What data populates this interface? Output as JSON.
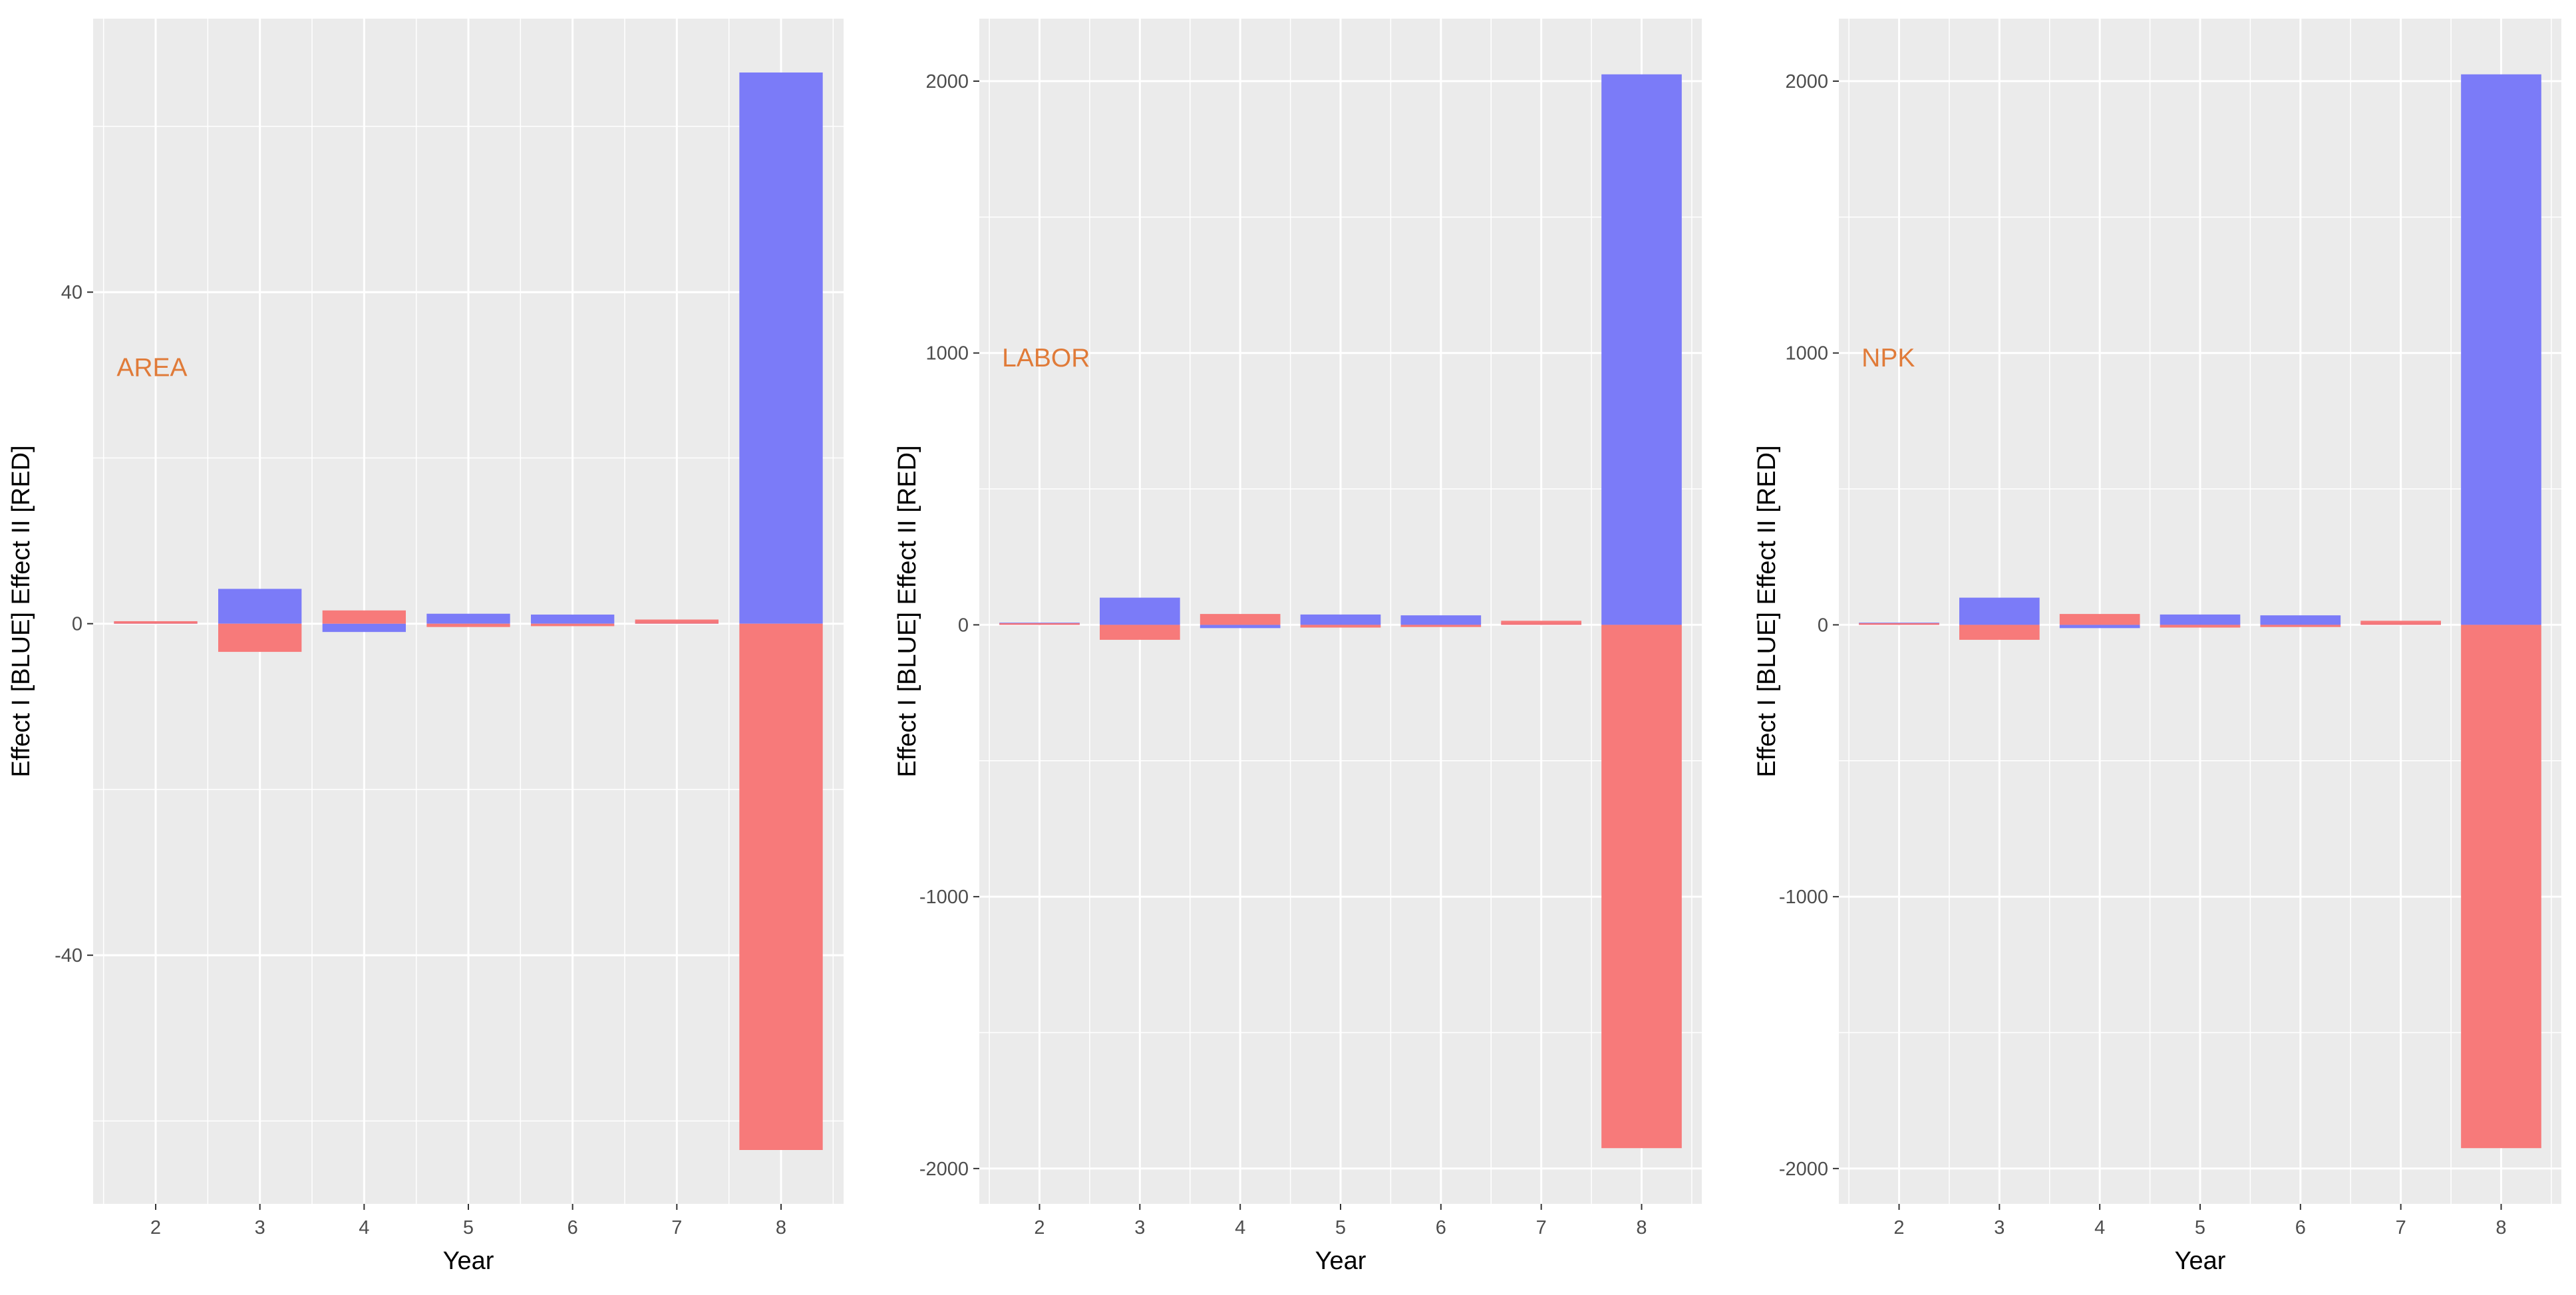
{
  "colors": {
    "effect_blue": "#7777f8",
    "effect_red": "#f77676",
    "annotation": "#e07b39",
    "panel_bg": "#ebebeb",
    "grid": "#ffffff"
  },
  "chart_data": [
    {
      "type": "bar",
      "annotation": "AREA",
      "xlabel": "Year",
      "ylabel": "Effect I [BLUE] Effect II [RED]",
      "categories": [
        "2",
        "3",
        "4",
        "5",
        "6",
        "7",
        "8"
      ],
      "ylim": [
        -70,
        73
      ],
      "yticks": [
        -40,
        0,
        40
      ],
      "yticklabels": [
        "-40",
        "0",
        "40"
      ],
      "series": [
        {
          "name": "Effect I",
          "color": "blue",
          "values": [
            0.2,
            4.2,
            -1.0,
            1.2,
            1.1,
            0.3,
            66.5
          ]
        },
        {
          "name": "Effect II",
          "color": "red",
          "values": [
            0.3,
            -3.4,
            1.6,
            -0.4,
            -0.3,
            0.5,
            -63.5
          ]
        }
      ]
    },
    {
      "type": "bar",
      "annotation": "LABOR",
      "xlabel": "Year",
      "ylabel": "Effect I [BLUE] Effect II [RED]",
      "categories": [
        "2",
        "3",
        "4",
        "5",
        "6",
        "7",
        "8"
      ],
      "ylim": [
        -2130,
        2230
      ],
      "yticks": [
        -2000,
        -1000,
        0,
        1000,
        2000
      ],
      "yticklabels": [
        "-2000",
        "-1000",
        "0",
        "1000",
        "2000"
      ],
      "series": [
        {
          "name": "Effect I",
          "color": "blue",
          "values": [
            8,
            100,
            -12,
            38,
            35,
            8,
            2025
          ]
        },
        {
          "name": "Effect II",
          "color": "red",
          "values": [
            6,
            -55,
            40,
            -10,
            -8,
            15,
            -1925
          ]
        }
      ]
    },
    {
      "type": "bar",
      "annotation": "NPK",
      "xlabel": "Year",
      "ylabel": "Effect I [BLUE] Effect II [RED]",
      "categories": [
        "2",
        "3",
        "4",
        "5",
        "6",
        "7",
        "8"
      ],
      "ylim": [
        -2130,
        2230
      ],
      "yticks": [
        -2000,
        -1000,
        0,
        1000,
        2000
      ],
      "yticklabels": [
        "-2000",
        "-1000",
        "0",
        "1000",
        "2000"
      ],
      "series": [
        {
          "name": "Effect I",
          "color": "blue",
          "values": [
            8,
            100,
            -12,
            38,
            35,
            8,
            2025
          ]
        },
        {
          "name": "Effect II",
          "color": "red",
          "values": [
            6,
            -55,
            40,
            -10,
            -8,
            15,
            -1925
          ]
        }
      ]
    }
  ]
}
